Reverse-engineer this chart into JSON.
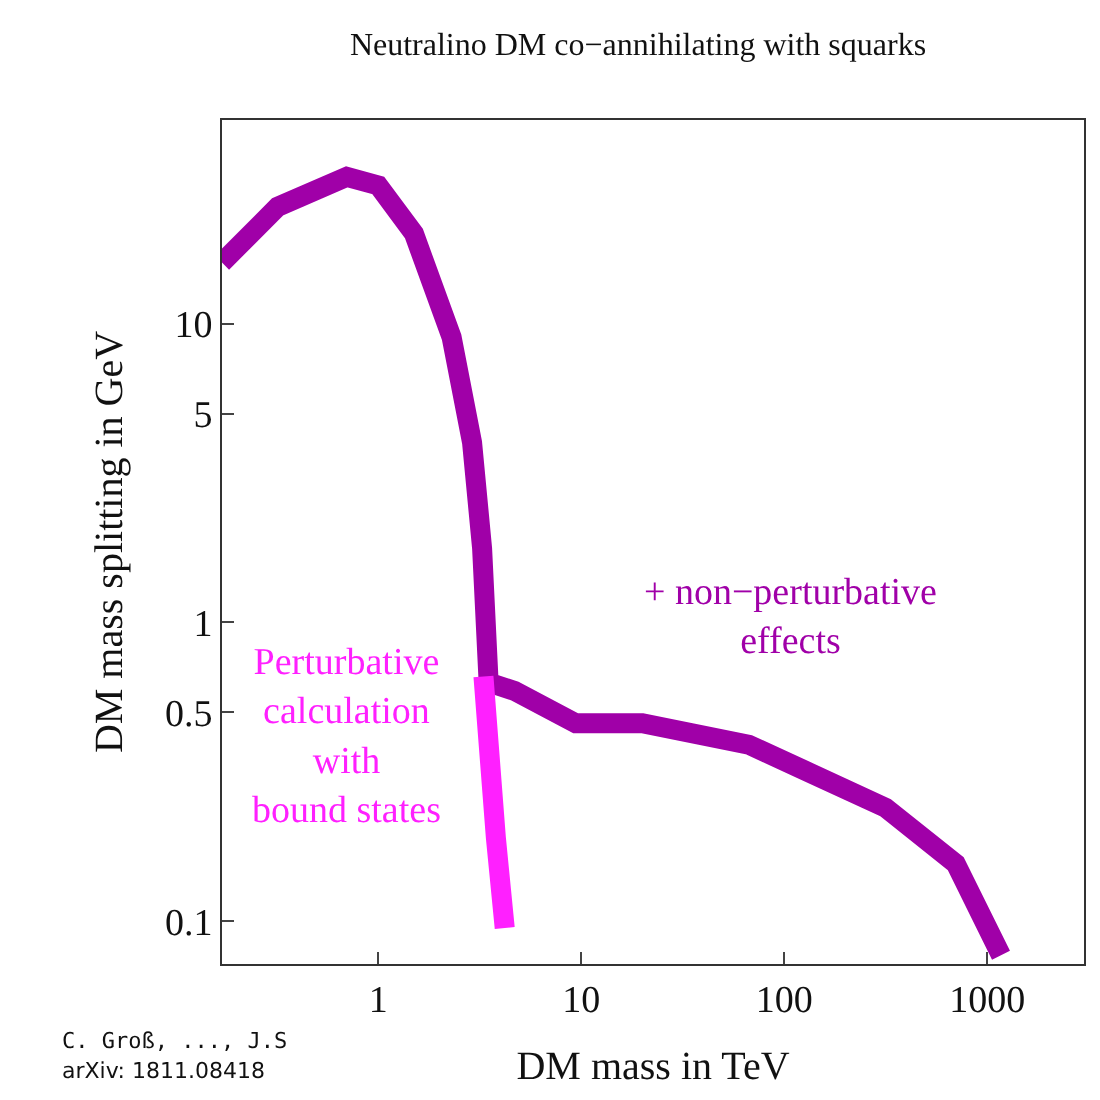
{
  "chart_data": {
    "type": "line",
    "title": "Neutralino DM co−annihilating with squarks",
    "xlabel": "DM mass in TeV",
    "ylabel": "DM mass splitting in GeV",
    "log": "xy",
    "xlim": [
      0.17,
      3000
    ],
    "ylim": [
      0.072,
      48
    ],
    "xticks": [
      1,
      10,
      100,
      1000
    ],
    "yticks": [
      0.1,
      0.5,
      1,
      5,
      10
    ],
    "legend": false,
    "marker": "none",
    "line_style": "solid",
    "series": [
      {
        "name": "+ non−perturbative\neffects",
        "color": "#a000a8",
        "x": [
          0.17,
          0.32,
          0.7,
          1,
          1.5,
          2.3,
          2.9,
          3.25,
          3.5,
          4.7,
          9.4,
          20,
          67,
          126,
          316,
          700,
          1170
        ],
        "values": [
          16,
          24.6,
          31,
          29,
          20,
          9,
          4,
          1.77,
          0.63,
          0.59,
          0.46,
          0.46,
          0.39,
          0.32,
          0.24,
          0.156,
          0.077
        ]
      },
      {
        "name": "Perturbative\ncalculation\nwith\nbound states",
        "color": "#ff20ff",
        "x": [
          3.3,
          3.8,
          4.2
        ],
        "values": [
          0.66,
          0.19,
          0.095
        ]
      }
    ],
    "annotations": [
      "C. Groß, ..., J.S",
      "arXiv: 1811.08418"
    ]
  }
}
